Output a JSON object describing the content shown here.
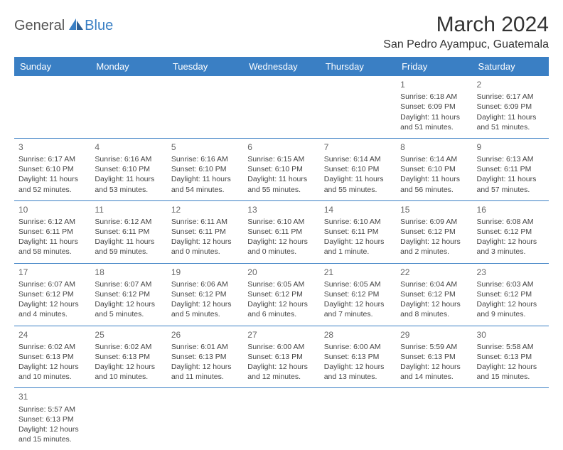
{
  "logo": {
    "main": "General",
    "sub": "Blue"
  },
  "title": "March 2024",
  "location": "San Pedro Ayampuc, Guatemala",
  "colors": {
    "header_bg": "#3a7fc4",
    "header_fg": "#ffffff",
    "border": "#3a7fc4",
    "text": "#444444",
    "title": "#333333",
    "logo_main": "#555555",
    "logo_sub": "#3a7fc4"
  },
  "weekdays": [
    "Sunday",
    "Monday",
    "Tuesday",
    "Wednesday",
    "Thursday",
    "Friday",
    "Saturday"
  ],
  "weeks": [
    [
      null,
      null,
      null,
      null,
      null,
      {
        "n": "1",
        "sr": "Sunrise: 6:18 AM",
        "ss": "Sunset: 6:09 PM",
        "d1": "Daylight: 11 hours",
        "d2": "and 51 minutes."
      },
      {
        "n": "2",
        "sr": "Sunrise: 6:17 AM",
        "ss": "Sunset: 6:09 PM",
        "d1": "Daylight: 11 hours",
        "d2": "and 51 minutes."
      }
    ],
    [
      {
        "n": "3",
        "sr": "Sunrise: 6:17 AM",
        "ss": "Sunset: 6:10 PM",
        "d1": "Daylight: 11 hours",
        "d2": "and 52 minutes."
      },
      {
        "n": "4",
        "sr": "Sunrise: 6:16 AM",
        "ss": "Sunset: 6:10 PM",
        "d1": "Daylight: 11 hours",
        "d2": "and 53 minutes."
      },
      {
        "n": "5",
        "sr": "Sunrise: 6:16 AM",
        "ss": "Sunset: 6:10 PM",
        "d1": "Daylight: 11 hours",
        "d2": "and 54 minutes."
      },
      {
        "n": "6",
        "sr": "Sunrise: 6:15 AM",
        "ss": "Sunset: 6:10 PM",
        "d1": "Daylight: 11 hours",
        "d2": "and 55 minutes."
      },
      {
        "n": "7",
        "sr": "Sunrise: 6:14 AM",
        "ss": "Sunset: 6:10 PM",
        "d1": "Daylight: 11 hours",
        "d2": "and 55 minutes."
      },
      {
        "n": "8",
        "sr": "Sunrise: 6:14 AM",
        "ss": "Sunset: 6:10 PM",
        "d1": "Daylight: 11 hours",
        "d2": "and 56 minutes."
      },
      {
        "n": "9",
        "sr": "Sunrise: 6:13 AM",
        "ss": "Sunset: 6:11 PM",
        "d1": "Daylight: 11 hours",
        "d2": "and 57 minutes."
      }
    ],
    [
      {
        "n": "10",
        "sr": "Sunrise: 6:12 AM",
        "ss": "Sunset: 6:11 PM",
        "d1": "Daylight: 11 hours",
        "d2": "and 58 minutes."
      },
      {
        "n": "11",
        "sr": "Sunrise: 6:12 AM",
        "ss": "Sunset: 6:11 PM",
        "d1": "Daylight: 11 hours",
        "d2": "and 59 minutes."
      },
      {
        "n": "12",
        "sr": "Sunrise: 6:11 AM",
        "ss": "Sunset: 6:11 PM",
        "d1": "Daylight: 12 hours",
        "d2": "and 0 minutes."
      },
      {
        "n": "13",
        "sr": "Sunrise: 6:10 AM",
        "ss": "Sunset: 6:11 PM",
        "d1": "Daylight: 12 hours",
        "d2": "and 0 minutes."
      },
      {
        "n": "14",
        "sr": "Sunrise: 6:10 AM",
        "ss": "Sunset: 6:11 PM",
        "d1": "Daylight: 12 hours",
        "d2": "and 1 minute."
      },
      {
        "n": "15",
        "sr": "Sunrise: 6:09 AM",
        "ss": "Sunset: 6:12 PM",
        "d1": "Daylight: 12 hours",
        "d2": "and 2 minutes."
      },
      {
        "n": "16",
        "sr": "Sunrise: 6:08 AM",
        "ss": "Sunset: 6:12 PM",
        "d1": "Daylight: 12 hours",
        "d2": "and 3 minutes."
      }
    ],
    [
      {
        "n": "17",
        "sr": "Sunrise: 6:07 AM",
        "ss": "Sunset: 6:12 PM",
        "d1": "Daylight: 12 hours",
        "d2": "and 4 minutes."
      },
      {
        "n": "18",
        "sr": "Sunrise: 6:07 AM",
        "ss": "Sunset: 6:12 PM",
        "d1": "Daylight: 12 hours",
        "d2": "and 5 minutes."
      },
      {
        "n": "19",
        "sr": "Sunrise: 6:06 AM",
        "ss": "Sunset: 6:12 PM",
        "d1": "Daylight: 12 hours",
        "d2": "and 5 minutes."
      },
      {
        "n": "20",
        "sr": "Sunrise: 6:05 AM",
        "ss": "Sunset: 6:12 PM",
        "d1": "Daylight: 12 hours",
        "d2": "and 6 minutes."
      },
      {
        "n": "21",
        "sr": "Sunrise: 6:05 AM",
        "ss": "Sunset: 6:12 PM",
        "d1": "Daylight: 12 hours",
        "d2": "and 7 minutes."
      },
      {
        "n": "22",
        "sr": "Sunrise: 6:04 AM",
        "ss": "Sunset: 6:12 PM",
        "d1": "Daylight: 12 hours",
        "d2": "and 8 minutes."
      },
      {
        "n": "23",
        "sr": "Sunrise: 6:03 AM",
        "ss": "Sunset: 6:12 PM",
        "d1": "Daylight: 12 hours",
        "d2": "and 9 minutes."
      }
    ],
    [
      {
        "n": "24",
        "sr": "Sunrise: 6:02 AM",
        "ss": "Sunset: 6:13 PM",
        "d1": "Daylight: 12 hours",
        "d2": "and 10 minutes."
      },
      {
        "n": "25",
        "sr": "Sunrise: 6:02 AM",
        "ss": "Sunset: 6:13 PM",
        "d1": "Daylight: 12 hours",
        "d2": "and 10 minutes."
      },
      {
        "n": "26",
        "sr": "Sunrise: 6:01 AM",
        "ss": "Sunset: 6:13 PM",
        "d1": "Daylight: 12 hours",
        "d2": "and 11 minutes."
      },
      {
        "n": "27",
        "sr": "Sunrise: 6:00 AM",
        "ss": "Sunset: 6:13 PM",
        "d1": "Daylight: 12 hours",
        "d2": "and 12 minutes."
      },
      {
        "n": "28",
        "sr": "Sunrise: 6:00 AM",
        "ss": "Sunset: 6:13 PM",
        "d1": "Daylight: 12 hours",
        "d2": "and 13 minutes."
      },
      {
        "n": "29",
        "sr": "Sunrise: 5:59 AM",
        "ss": "Sunset: 6:13 PM",
        "d1": "Daylight: 12 hours",
        "d2": "and 14 minutes."
      },
      {
        "n": "30",
        "sr": "Sunrise: 5:58 AM",
        "ss": "Sunset: 6:13 PM",
        "d1": "Daylight: 12 hours",
        "d2": "and 15 minutes."
      }
    ],
    [
      {
        "n": "31",
        "sr": "Sunrise: 5:57 AM",
        "ss": "Sunset: 6:13 PM",
        "d1": "Daylight: 12 hours",
        "d2": "and 15 minutes."
      },
      null,
      null,
      null,
      null,
      null,
      null
    ]
  ]
}
